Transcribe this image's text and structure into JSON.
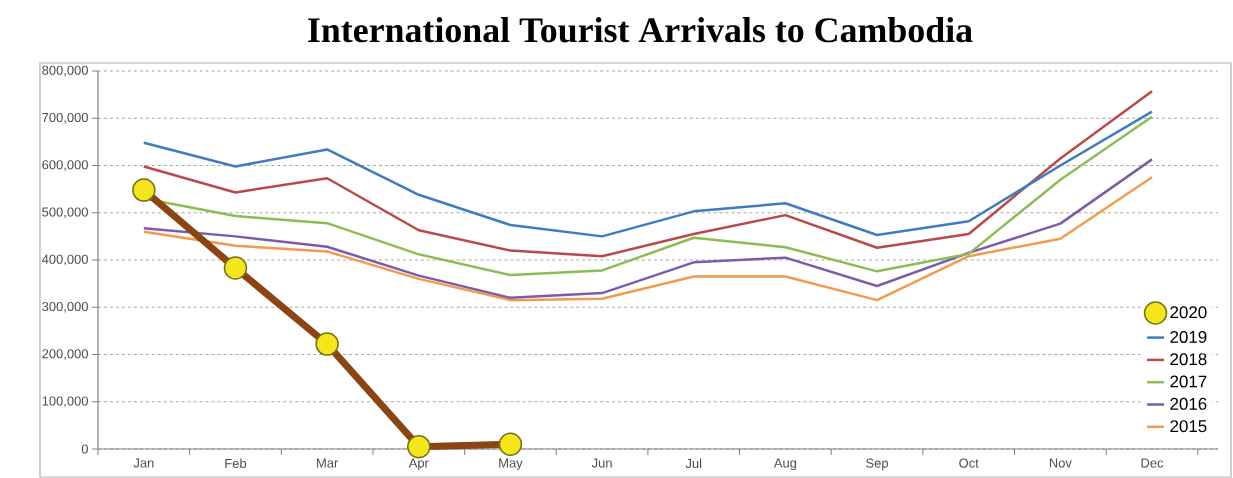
{
  "chart_data": {
    "type": "line",
    "title": "International Tourist Arrivals to Cambodia",
    "categories": [
      "Jan",
      "Feb",
      "Mar",
      "Apr",
      "May",
      "Jun",
      "Jul",
      "Aug",
      "Sep",
      "Oct",
      "Nov",
      "Dec"
    ],
    "series": [
      {
        "name": "2020",
        "color": "#8b4513",
        "marker": "circle",
        "colors": [
          "#f5e51b",
          "#f5e51b",
          "#f5e51b",
          "#f5e51b",
          "#f5e51b",
          "#f5e51b",
          "#f5e51b",
          "#f5e51b",
          "#f5e51b",
          "#f5e51b",
          "#f5e51b",
          "#f5e51b"
        ],
        "values": [
          548000,
          383000,
          222000,
          5000,
          10000,
          null,
          null,
          null,
          null,
          null,
          null,
          null
        ]
      },
      {
        "name": "2019",
        "color": "#3d7cc0",
        "values": [
          648000,
          598000,
          634000,
          538000,
          474000,
          450000,
          503000,
          520000,
          453000,
          482000,
          600000,
          714000
        ]
      },
      {
        "name": "2018",
        "color": "#b94a48",
        "values": [
          598000,
          543000,
          573000,
          463000,
          420000,
          408000,
          455000,
          495000,
          426000,
          455000,
          615000,
          757000
        ]
      },
      {
        "name": "2017",
        "color": "#8cbd55",
        "values": [
          530000,
          493000,
          478000,
          412000,
          368000,
          378000,
          447000,
          427000,
          376000,
          413000,
          570000,
          703000
        ]
      },
      {
        "name": "2016",
        "color": "#7a5ca8",
        "values": [
          467000,
          450000,
          428000,
          367000,
          320000,
          330000,
          395000,
          405000,
          345000,
          415000,
          477000,
          613000
        ]
      },
      {
        "name": "2015",
        "color": "#f29b4d",
        "values": [
          460000,
          430000,
          418000,
          360000,
          315000,
          318000,
          365000,
          365000,
          315000,
          408000,
          445000,
          575000
        ]
      }
    ],
    "ylim": [
      0,
      800000
    ],
    "yticks": [
      0,
      {
        "value": 100000,
        "label": "100,000"
      },
      {
        "value": 200000,
        "label": "200,000"
      },
      {
        "value": 300000,
        "label": "300,000"
      },
      {
        "value": 400000,
        "label": "400,000"
      },
      {
        "value": 500000,
        "label": "500,000"
      },
      {
        "value": 600000,
        "label": "600,000"
      },
      {
        "value": 700000,
        "label": "700,000"
      },
      {
        "value": 800000,
        "label": "800,000"
      }
    ],
    "grid": "y",
    "legend": "bottom right",
    "line_style": "solid"
  }
}
